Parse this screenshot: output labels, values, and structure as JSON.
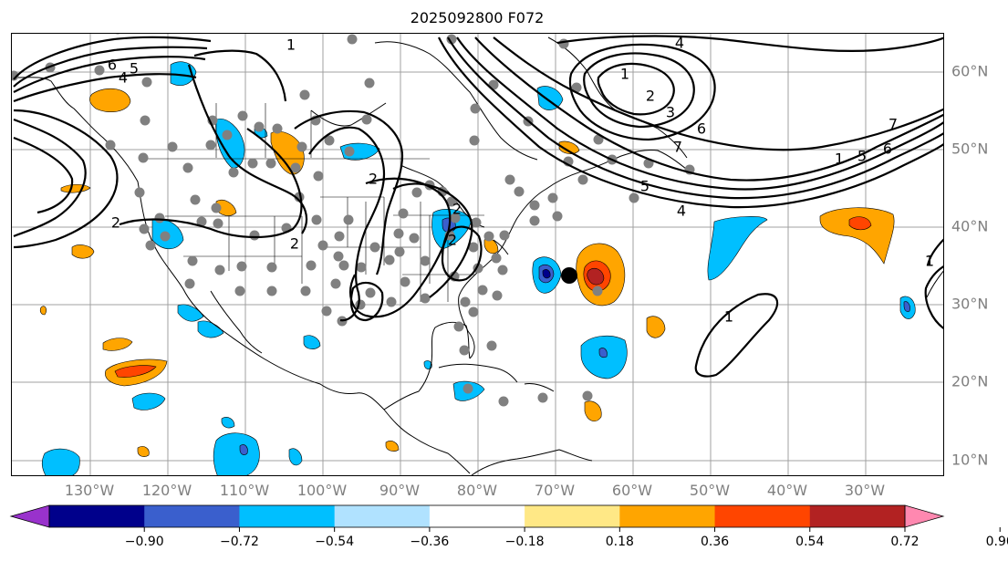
{
  "title": "2025092800 F072",
  "lon_labels": [
    "130°W",
    "120°W",
    "110°W",
    "100°W",
    "90°W",
    "80°W",
    "70°W",
    "60°W",
    "50°W",
    "40°W",
    "30°W"
  ],
  "lat_labels": [
    "60°N",
    "50°N",
    "40°N",
    "30°N",
    "20°N",
    "10°N"
  ],
  "colorbar": {
    "labels": [
      "−0.90",
      "−0.72",
      "−0.54",
      "−0.36",
      "−0.18",
      "0.18",
      "0.36",
      "0.54",
      "0.72",
      "0.90"
    ],
    "colors": [
      "#9932cc",
      "#00008b",
      "#3a5fcd",
      "#00bfff",
      "#b0e2ff",
      "#ffffff",
      "#ffe886",
      "#ffa500",
      "#ff4500",
      "#b22222",
      "#ff88b0"
    ]
  },
  "contour_labels": [
    "6",
    "5",
    "4",
    "2",
    "2",
    "2",
    "2",
    "1",
    "1",
    "2",
    "3",
    "4",
    "5",
    "6",
    "7",
    "4",
    "1",
    "5",
    "6",
    "7",
    "1",
    "1",
    "2"
  ],
  "colors": {
    "grid": "#a0a0a0",
    "dot": "#808080",
    "contour": "#000000",
    "tick_label": "#7f7f7f"
  }
}
